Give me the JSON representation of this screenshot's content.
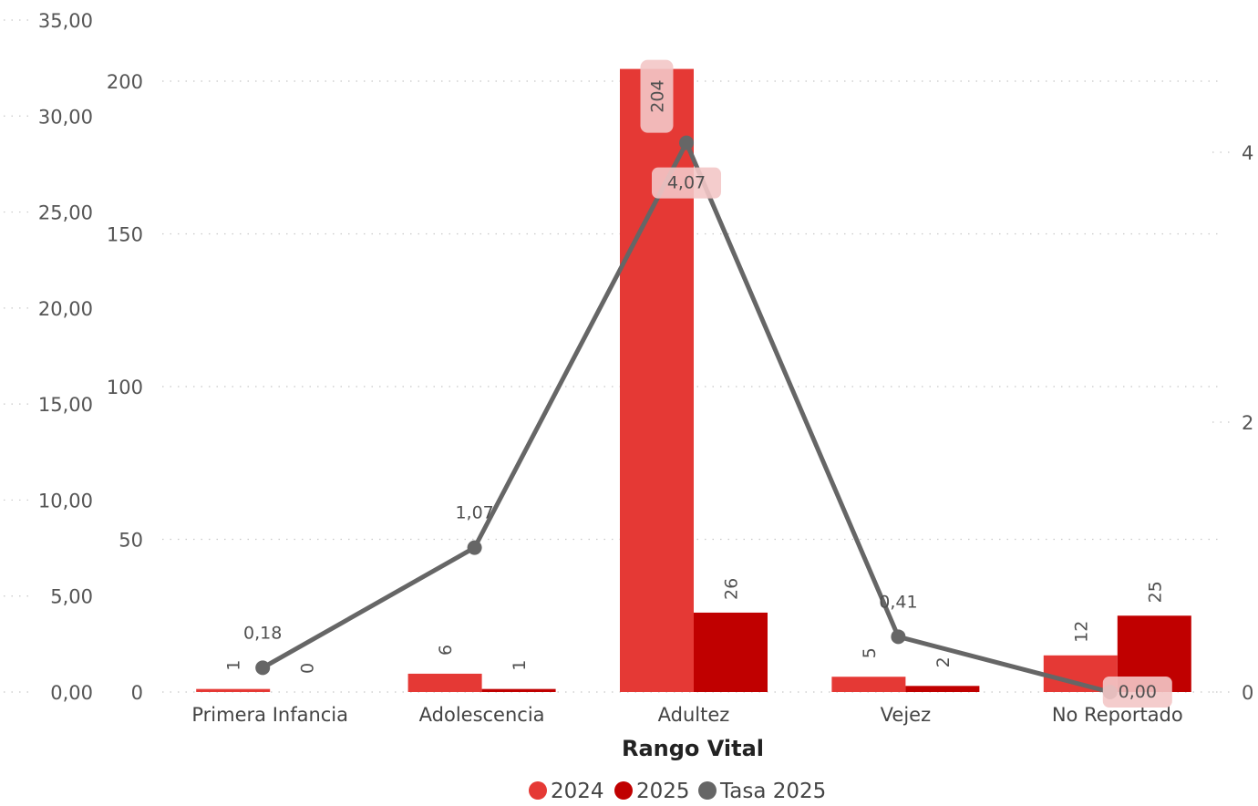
{
  "chart_data": {
    "type": "bar",
    "xlabel": "Rango Vital",
    "categories": [
      "Primera Infancia",
      "Adolescencia",
      "Adultez",
      "Vejez",
      "No Reportado"
    ],
    "series": [
      {
        "name": "2024",
        "kind": "bar",
        "color": "#E53935",
        "values": [
          1,
          6,
          204,
          5,
          12
        ],
        "labels": [
          "1",
          "6",
          "204",
          "5",
          "12"
        ]
      },
      {
        "name": "2025",
        "kind": "bar",
        "color": "#C00000",
        "values": [
          0,
          1,
          26,
          2,
          25
        ],
        "labels": [
          "0",
          "1",
          "26",
          "2",
          "25"
        ]
      },
      {
        "name": "Tasa 2025",
        "kind": "line",
        "color": "#666666",
        "values": [
          0.18,
          1.07,
          4.07,
          0.41,
          0.0
        ],
        "labels": [
          "0,18",
          "1,07",
          "4,07",
          "0,41",
          "0,00"
        ]
      }
    ],
    "axes": {
      "outer_left": {
        "ylim": [
          0,
          35
        ],
        "ticks": [
          "0,00",
          "5,00",
          "10,00",
          "15,00",
          "20,00",
          "25,00",
          "30,00",
          "35,00"
        ]
      },
      "inner_left": {
        "ylim": [
          0,
          200
        ],
        "ticks": [
          "0",
          "50",
          "100",
          "150",
          "200"
        ]
      },
      "right": {
        "ylim": [
          0,
          4
        ],
        "ticks": [
          "0",
          "2",
          "4"
        ]
      }
    },
    "grid": true,
    "legend": {
      "position": "bottom-center"
    }
  }
}
